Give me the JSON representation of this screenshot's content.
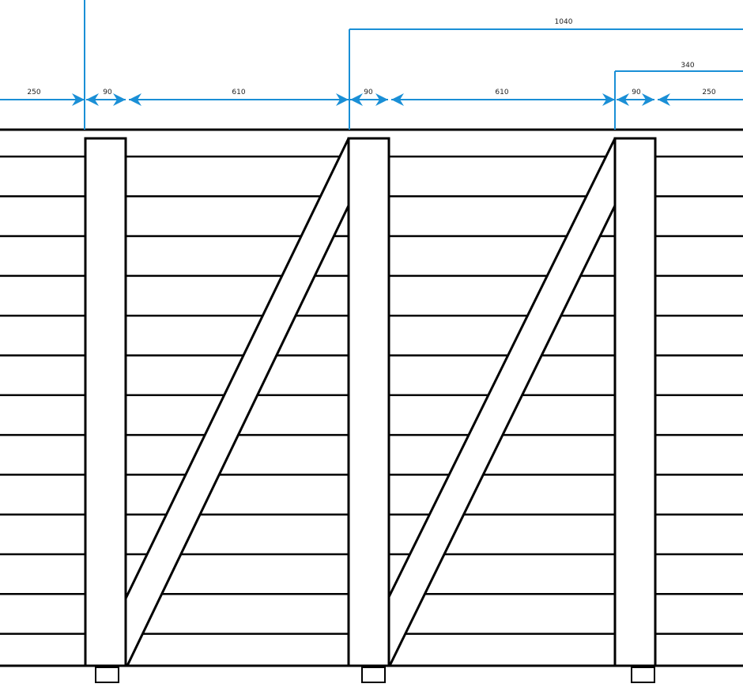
{
  "colors": {
    "dimension": "#1a8fd6",
    "structure": "#000000",
    "background": "#ffffff"
  },
  "dimensions": {
    "row": [
      "250",
      "90",
      "610",
      "90",
      "610",
      "90",
      "250"
    ],
    "overall_1": "1040",
    "overall_2": "340"
  }
}
